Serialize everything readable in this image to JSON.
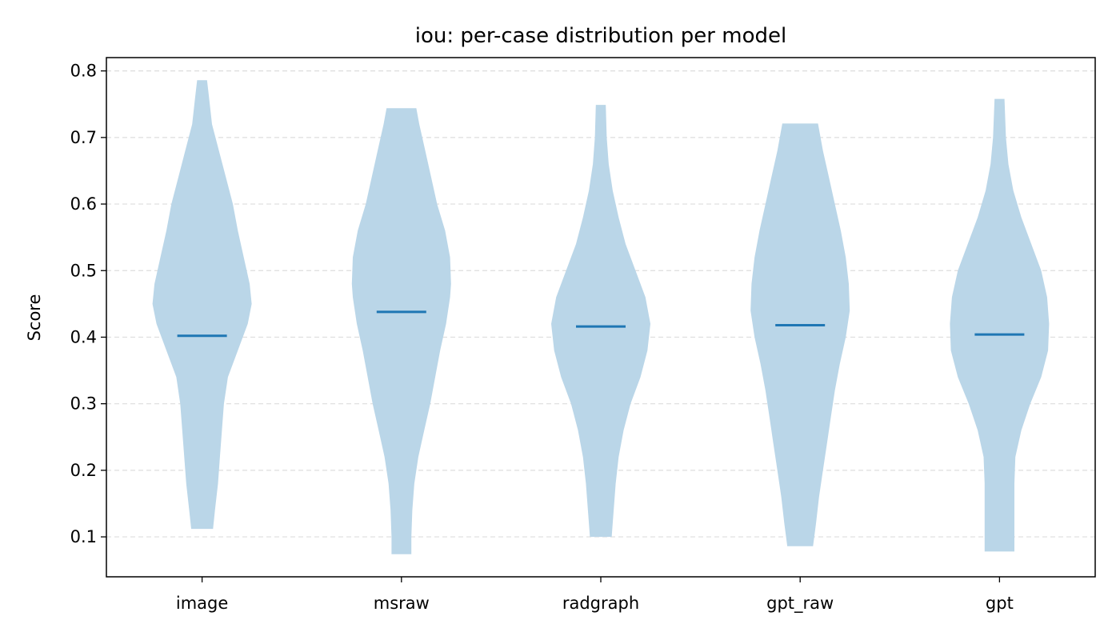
{
  "chart_data": {
    "type": "violin",
    "title": "iou: per-case distribution per model",
    "xlabel": "",
    "ylabel": "Score",
    "ylim": [
      0.04,
      0.82
    ],
    "yticks": [
      0.1,
      0.2,
      0.3,
      0.4,
      0.5,
      0.6,
      0.7,
      0.8
    ],
    "ytick_labels": [
      "0.1",
      "0.2",
      "0.3",
      "0.4",
      "0.5",
      "0.6",
      "0.7",
      "0.8"
    ],
    "grid": "y-dashed",
    "colors": {
      "violin": "#bad6e8",
      "median": "#1f77b4",
      "grid": "#dddddd"
    },
    "categories": [
      "image",
      "msraw",
      "radgraph",
      "gpt_raw",
      "gpt"
    ],
    "series": [
      {
        "category": "image",
        "min": 0.112,
        "max": 0.786,
        "median": 0.402,
        "profile": [
          [
            0.112,
            0.22
          ],
          [
            0.14,
            0.26
          ],
          [
            0.18,
            0.32
          ],
          [
            0.22,
            0.36
          ],
          [
            0.26,
            0.4
          ],
          [
            0.3,
            0.44
          ],
          [
            0.34,
            0.52
          ],
          [
            0.38,
            0.72
          ],
          [
            0.42,
            0.92
          ],
          [
            0.45,
            1.0
          ],
          [
            0.48,
            0.96
          ],
          [
            0.52,
            0.84
          ],
          [
            0.56,
            0.72
          ],
          [
            0.6,
            0.62
          ],
          [
            0.64,
            0.48
          ],
          [
            0.68,
            0.34
          ],
          [
            0.72,
            0.2
          ],
          [
            0.76,
            0.14
          ],
          [
            0.786,
            0.1
          ]
        ]
      },
      {
        "category": "msraw",
        "min": 0.074,
        "max": 0.744,
        "median": 0.438,
        "profile": [
          [
            0.074,
            0.2
          ],
          [
            0.1,
            0.2
          ],
          [
            0.14,
            0.22
          ],
          [
            0.18,
            0.26
          ],
          [
            0.22,
            0.34
          ],
          [
            0.26,
            0.46
          ],
          [
            0.3,
            0.58
          ],
          [
            0.34,
            0.68
          ],
          [
            0.38,
            0.78
          ],
          [
            0.42,
            0.9
          ],
          [
            0.46,
            0.98
          ],
          [
            0.48,
            1.0
          ],
          [
            0.52,
            0.98
          ],
          [
            0.56,
            0.88
          ],
          [
            0.6,
            0.72
          ],
          [
            0.64,
            0.6
          ],
          [
            0.68,
            0.48
          ],
          [
            0.72,
            0.36
          ],
          [
            0.744,
            0.3
          ]
        ]
      },
      {
        "category": "radgraph",
        "min": 0.1,
        "max": 0.749,
        "median": 0.416,
        "profile": [
          [
            0.1,
            0.22
          ],
          [
            0.14,
            0.26
          ],
          [
            0.18,
            0.3
          ],
          [
            0.22,
            0.36
          ],
          [
            0.26,
            0.46
          ],
          [
            0.3,
            0.6
          ],
          [
            0.34,
            0.8
          ],
          [
            0.38,
            0.94
          ],
          [
            0.42,
            1.0
          ],
          [
            0.46,
            0.9
          ],
          [
            0.5,
            0.7
          ],
          [
            0.54,
            0.5
          ],
          [
            0.58,
            0.36
          ],
          [
            0.62,
            0.24
          ],
          [
            0.66,
            0.16
          ],
          [
            0.7,
            0.12
          ],
          [
            0.749,
            0.1
          ]
        ]
      },
      {
        "category": "gpt_raw",
        "min": 0.086,
        "max": 0.721,
        "median": 0.418,
        "profile": [
          [
            0.086,
            0.26
          ],
          [
            0.12,
            0.32
          ],
          [
            0.16,
            0.38
          ],
          [
            0.2,
            0.46
          ],
          [
            0.24,
            0.54
          ],
          [
            0.28,
            0.62
          ],
          [
            0.32,
            0.7
          ],
          [
            0.36,
            0.8
          ],
          [
            0.4,
            0.92
          ],
          [
            0.44,
            1.0
          ],
          [
            0.48,
            0.98
          ],
          [
            0.52,
            0.92
          ],
          [
            0.56,
            0.82
          ],
          [
            0.6,
            0.7
          ],
          [
            0.64,
            0.58
          ],
          [
            0.68,
            0.46
          ],
          [
            0.721,
            0.36
          ]
        ]
      },
      {
        "category": "gpt",
        "min": 0.078,
        "max": 0.758,
        "median": 0.404,
        "profile": [
          [
            0.078,
            0.3
          ],
          [
            0.1,
            0.3
          ],
          [
            0.14,
            0.3
          ],
          [
            0.18,
            0.3
          ],
          [
            0.22,
            0.32
          ],
          [
            0.26,
            0.44
          ],
          [
            0.3,
            0.62
          ],
          [
            0.34,
            0.84
          ],
          [
            0.38,
            0.98
          ],
          [
            0.42,
            1.0
          ],
          [
            0.46,
            0.96
          ],
          [
            0.5,
            0.84
          ],
          [
            0.54,
            0.64
          ],
          [
            0.58,
            0.44
          ],
          [
            0.62,
            0.28
          ],
          [
            0.66,
            0.18
          ],
          [
            0.7,
            0.13
          ],
          [
            0.758,
            0.1
          ]
        ]
      }
    ]
  }
}
